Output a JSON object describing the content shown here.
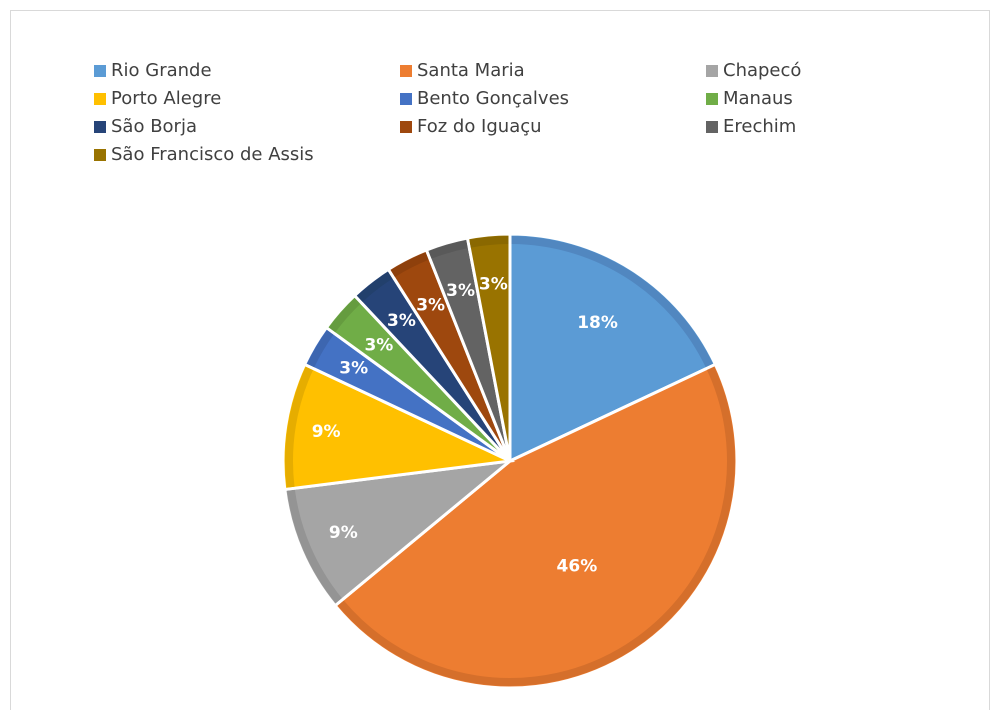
{
  "chart_data": {
    "type": "pie",
    "categories": [
      "Rio Grande",
      "Santa Maria",
      "Chapecó",
      "Porto Alegre",
      "Bento Gonçalves",
      "Manaus",
      "São Borja",
      "Foz do Iguaçu",
      "Erechim",
      "São Francisco de Assis"
    ],
    "values": [
      18,
      46,
      9,
      9,
      3,
      3,
      3,
      3,
      3,
      3
    ],
    "data_labels": [
      "18%",
      "46%",
      "9%",
      "9%",
      "3%",
      "3%",
      "3%",
      "3%",
      "3%",
      "3%"
    ],
    "colors": [
      "#5B9BD5",
      "#ED7D31",
      "#A5A5A5",
      "#FFC000",
      "#4472C4",
      "#70AD47",
      "#264478",
      "#9E480E",
      "#636363",
      "#997300"
    ],
    "edge_colors": [
      "#5187c0",
      "#d56f2b",
      "#949494",
      "#e6ad00",
      "#3d66b0",
      "#659c3f",
      "#22406c",
      "#8e400c",
      "#595959",
      "#8a6800"
    ],
    "start_angle_deg": 0,
    "direction": "clockwise",
    "legend_position": "top",
    "title": ""
  }
}
